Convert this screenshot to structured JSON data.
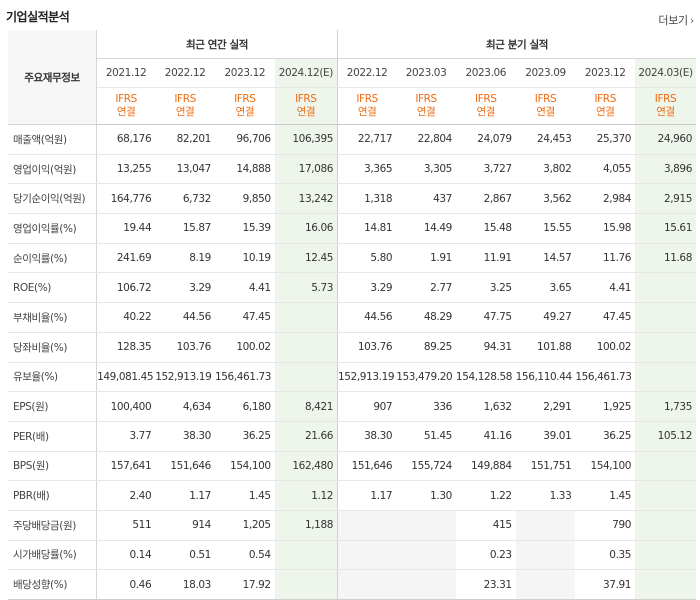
{
  "header": {
    "title": "기업실적분석",
    "more_label": "더보기",
    "more_icon": "chevron-right-icon"
  },
  "table": {
    "corner_label": "주요재무정보",
    "annual_group_label": "최근 연간 실적",
    "quarter_group_label": "최근 분기 실적",
    "annual_periods": [
      "2021.12",
      "2022.12",
      "2023.12",
      "2024.12(E)"
    ],
    "quarter_periods": [
      "2022.12",
      "2023.03",
      "2023.06",
      "2023.09",
      "2023.12",
      "2024.03(E)"
    ],
    "ifrs_line1": "IFRS",
    "ifrs_line2": "연결",
    "estimate_bg_color": "#eef6ec",
    "ifrs_color": "#f06a0f",
    "rows": [
      {
        "label": "매출액(억원)",
        "annual": [
          "68,176",
          "82,201",
          "96,706",
          "106,395"
        ],
        "quarter": [
          "22,717",
          "22,804",
          "24,079",
          "24,453",
          "25,370",
          "24,960"
        ]
      },
      {
        "label": "영업이익(억원)",
        "annual": [
          "13,255",
          "13,047",
          "14,888",
          "17,086"
        ],
        "quarter": [
          "3,365",
          "3,305",
          "3,727",
          "3,802",
          "4,055",
          "3,896"
        ]
      },
      {
        "label": "당기순이익(억원)",
        "annual": [
          "164,776",
          "6,732",
          "9,850",
          "13,242"
        ],
        "quarter": [
          "1,318",
          "437",
          "2,867",
          "3,562",
          "2,984",
          "2,915"
        ]
      },
      {
        "label": "영업이익률(%)",
        "annual": [
          "19.44",
          "15.87",
          "15.39",
          "16.06"
        ],
        "quarter": [
          "14.81",
          "14.49",
          "15.48",
          "15.55",
          "15.98",
          "15.61"
        ]
      },
      {
        "label": "순이익률(%)",
        "annual": [
          "241.69",
          "8.19",
          "10.19",
          "12.45"
        ],
        "quarter": [
          "5.80",
          "1.91",
          "11.91",
          "14.57",
          "11.76",
          "11.68"
        ]
      },
      {
        "label": "ROE(%)",
        "annual": [
          "106.72",
          "3.29",
          "4.41",
          "5.73"
        ],
        "quarter": [
          "3.29",
          "2.77",
          "3.25",
          "3.65",
          "4.41",
          ""
        ]
      },
      {
        "label": "부채비율(%)",
        "annual": [
          "40.22",
          "44.56",
          "47.45",
          ""
        ],
        "quarter": [
          "44.56",
          "48.29",
          "47.75",
          "49.27",
          "47.45",
          ""
        ]
      },
      {
        "label": "당좌비율(%)",
        "annual": [
          "128.35",
          "103.76",
          "100.02",
          ""
        ],
        "quarter": [
          "103.76",
          "89.25",
          "94.31",
          "101.88",
          "100.02",
          ""
        ]
      },
      {
        "label": "유보율(%)",
        "annual": [
          "149,081.45",
          "152,913.19",
          "156,461.73",
          ""
        ],
        "quarter": [
          "152,913.19",
          "153,479.20",
          "154,128.58",
          "156,110.44",
          "156,461.73",
          ""
        ]
      },
      {
        "label": "EPS(원)",
        "annual": [
          "100,400",
          "4,634",
          "6,180",
          "8,421"
        ],
        "quarter": [
          "907",
          "336",
          "1,632",
          "2,291",
          "1,925",
          "1,735"
        ]
      },
      {
        "label": "PER(배)",
        "annual": [
          "3.77",
          "38.30",
          "36.25",
          "21.66"
        ],
        "quarter": [
          "38.30",
          "51.45",
          "41.16",
          "39.01",
          "36.25",
          "105.12"
        ]
      },
      {
        "label": "BPS(원)",
        "annual": [
          "157,641",
          "151,646",
          "154,100",
          "162,480"
        ],
        "quarter": [
          "151,646",
          "155,724",
          "149,884",
          "151,751",
          "154,100",
          ""
        ]
      },
      {
        "label": "PBR(배)",
        "annual": [
          "2.40",
          "1.17",
          "1.45",
          "1.12"
        ],
        "quarter": [
          "1.17",
          "1.30",
          "1.22",
          "1.33",
          "1.45",
          ""
        ]
      },
      {
        "label": "주당배당금(원)",
        "annual": [
          "511",
          "914",
          "1,205",
          "1,188"
        ],
        "quarter": [
          "",
          "",
          "415",
          "",
          "790",
          ""
        ]
      },
      {
        "label": "시가배당률(%)",
        "annual": [
          "0.14",
          "0.51",
          "0.54",
          ""
        ],
        "quarter": [
          "",
          "",
          "0.23",
          "",
          "0.35",
          ""
        ]
      },
      {
        "label": "배당성향(%)",
        "annual": [
          "0.46",
          "18.03",
          "17.92",
          ""
        ],
        "quarter": [
          "",
          "",
          "23.31",
          "",
          "37.91",
          ""
        ]
      }
    ]
  }
}
